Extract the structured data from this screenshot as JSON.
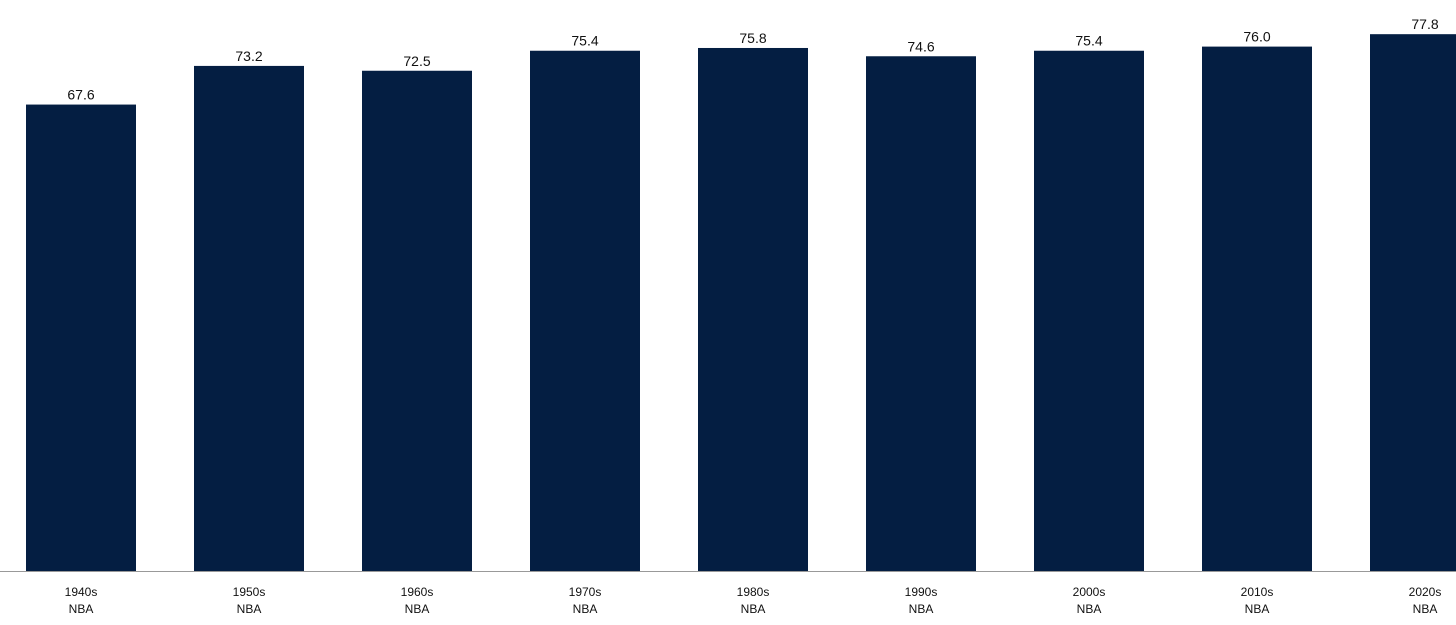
{
  "colors": {
    "bar": "#041e42",
    "axis": "#999999",
    "text": "#111111",
    "background": "#ffffff"
  },
  "chart_data": {
    "type": "bar",
    "title": "",
    "xlabel": "",
    "ylabel": "",
    "categories": [
      [
        "1940s",
        "NBA"
      ],
      [
        "1950s",
        "NBA"
      ],
      [
        "1960s",
        "NBA"
      ],
      [
        "1970s",
        "NBA"
      ],
      [
        "1980s",
        "NBA"
      ],
      [
        "1990s",
        "NBA"
      ],
      [
        "2000s",
        "NBA"
      ],
      [
        "2010s",
        "NBA"
      ],
      [
        "2020s",
        "NBA"
      ]
    ],
    "values": [
      67.6,
      73.2,
      72.5,
      75.4,
      75.8,
      74.6,
      75.4,
      76.0,
      77.8
    ],
    "value_labels": [
      "67.6",
      "73.2",
      "72.5",
      "75.4",
      "75.8",
      "74.6",
      "75.4",
      "76.0",
      "77.8"
    ],
    "ylim": [
      0,
      80
    ],
    "grid": false,
    "legend": "none"
  }
}
